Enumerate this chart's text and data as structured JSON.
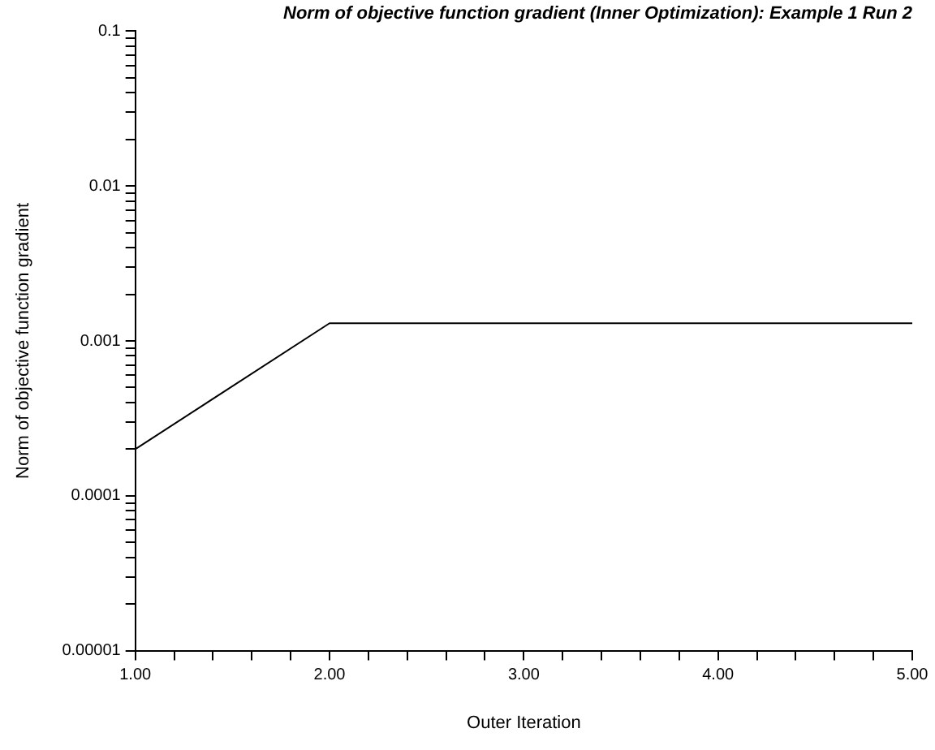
{
  "chart_data": {
    "type": "line",
    "title": "Norm of objective function gradient (Inner Optimization): Example 1 Run 2",
    "xlabel": "Outer Iteration",
    "ylabel": "Norm of objective function gradient",
    "x": [
      1,
      2,
      5
    ],
    "series": [
      {
        "color": "#000000",
        "values": [
          0.0002,
          0.0013,
          0.0013
        ]
      }
    ],
    "xlim": [
      1,
      5
    ],
    "xticks": [
      {
        "value": 1,
        "label": "1.00"
      },
      {
        "value": 1.2,
        "label": null
      },
      {
        "value": 1.4,
        "label": null
      },
      {
        "value": 1.6,
        "label": null
      },
      {
        "value": 1.8,
        "label": null
      },
      {
        "value": 2,
        "label": "2.00"
      },
      {
        "value": 2.2,
        "label": null
      },
      {
        "value": 2.4,
        "label": null
      },
      {
        "value": 2.6,
        "label": null
      },
      {
        "value": 2.8,
        "label": null
      },
      {
        "value": 3,
        "label": "3.00"
      },
      {
        "value": 3.2,
        "label": null
      },
      {
        "value": 3.4,
        "label": null
      },
      {
        "value": 3.6,
        "label": null
      },
      {
        "value": 3.8,
        "label": null
      },
      {
        "value": 4,
        "label": "4.00"
      },
      {
        "value": 4.2,
        "label": null
      },
      {
        "value": 4.4,
        "label": null
      },
      {
        "value": 4.6,
        "label": null
      },
      {
        "value": 4.8,
        "label": null
      },
      {
        "value": 5,
        "label": "5.00"
      }
    ],
    "ylim": [
      1e-05,
      0.1
    ],
    "log": true,
    "yticks": [
      {
        "value": 1e-05,
        "label": "0.00001"
      },
      {
        "value": 2e-05,
        "label": null
      },
      {
        "value": 3e-05,
        "label": null
      },
      {
        "value": 4e-05,
        "label": null
      },
      {
        "value": 5e-05,
        "label": null
      },
      {
        "value": 6e-05,
        "label": null
      },
      {
        "value": 7e-05,
        "label": null
      },
      {
        "value": 8e-05,
        "label": null
      },
      {
        "value": 9e-05,
        "label": null
      },
      {
        "value": 0.0001,
        "label": "0.0001"
      },
      {
        "value": 0.0002,
        "label": null
      },
      {
        "value": 0.0003,
        "label": null
      },
      {
        "value": 0.0004,
        "label": null
      },
      {
        "value": 0.0005,
        "label": null
      },
      {
        "value": 0.0006,
        "label": null
      },
      {
        "value": 0.0007,
        "label": null
      },
      {
        "value": 0.0008,
        "label": null
      },
      {
        "value": 0.0009,
        "label": null
      },
      {
        "value": 0.001,
        "label": "0.001"
      },
      {
        "value": 0.002,
        "label": null
      },
      {
        "value": 0.003,
        "label": null
      },
      {
        "value": 0.004,
        "label": null
      },
      {
        "value": 0.005,
        "label": null
      },
      {
        "value": 0.006,
        "label": null
      },
      {
        "value": 0.007,
        "label": null
      },
      {
        "value": 0.008,
        "label": null
      },
      {
        "value": 0.009,
        "label": null
      },
      {
        "value": 0.01,
        "label": "0.01"
      },
      {
        "value": 0.02,
        "label": null
      },
      {
        "value": 0.03,
        "label": null
      },
      {
        "value": 0.04,
        "label": null
      },
      {
        "value": 0.05,
        "label": null
      },
      {
        "value": 0.06,
        "label": null
      },
      {
        "value": 0.07,
        "label": null
      },
      {
        "value": 0.08,
        "label": null
      },
      {
        "value": 0.09,
        "label": null
      },
      {
        "value": 0.1,
        "label": "0.1"
      }
    ],
    "grid": false,
    "legend": false,
    "marker": "none",
    "line_style": "solid"
  }
}
